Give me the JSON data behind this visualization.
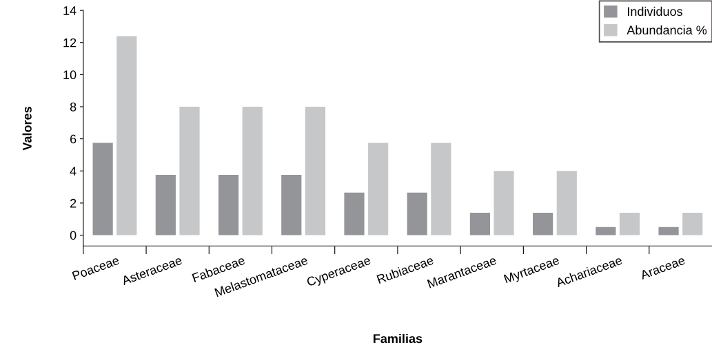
{
  "chart_data": {
    "type": "bar",
    "xlabel": "Familias",
    "ylabel": "Valores",
    "categories": [
      "Poaceae",
      "Asteraceae",
      "Fabaceae",
      "Melastomataceae",
      "Cyperaceae",
      "Rubiaceae",
      "Marantaceae",
      "Myrtaceae",
      "Achariaceae",
      "Araceae"
    ],
    "series": [
      {
        "name": "Individuos",
        "color": "#939598",
        "values": [
          5.75,
          3.75,
          3.75,
          3.75,
          2.65,
          2.65,
          1.4,
          1.4,
          0.5,
          0.5
        ]
      },
      {
        "name": "Abundancia %",
        "color": "#c6c7c9",
        "values": [
          12.4,
          8.0,
          8.0,
          8.0,
          5.75,
          5.75,
          4.0,
          4.0,
          1.4,
          1.4
        ]
      }
    ],
    "ylim": [
      -0.7,
      14
    ],
    "yticks": [
      0,
      2,
      4,
      6,
      8,
      10,
      12,
      14
    ],
    "grid": false,
    "legend": "top right"
  }
}
